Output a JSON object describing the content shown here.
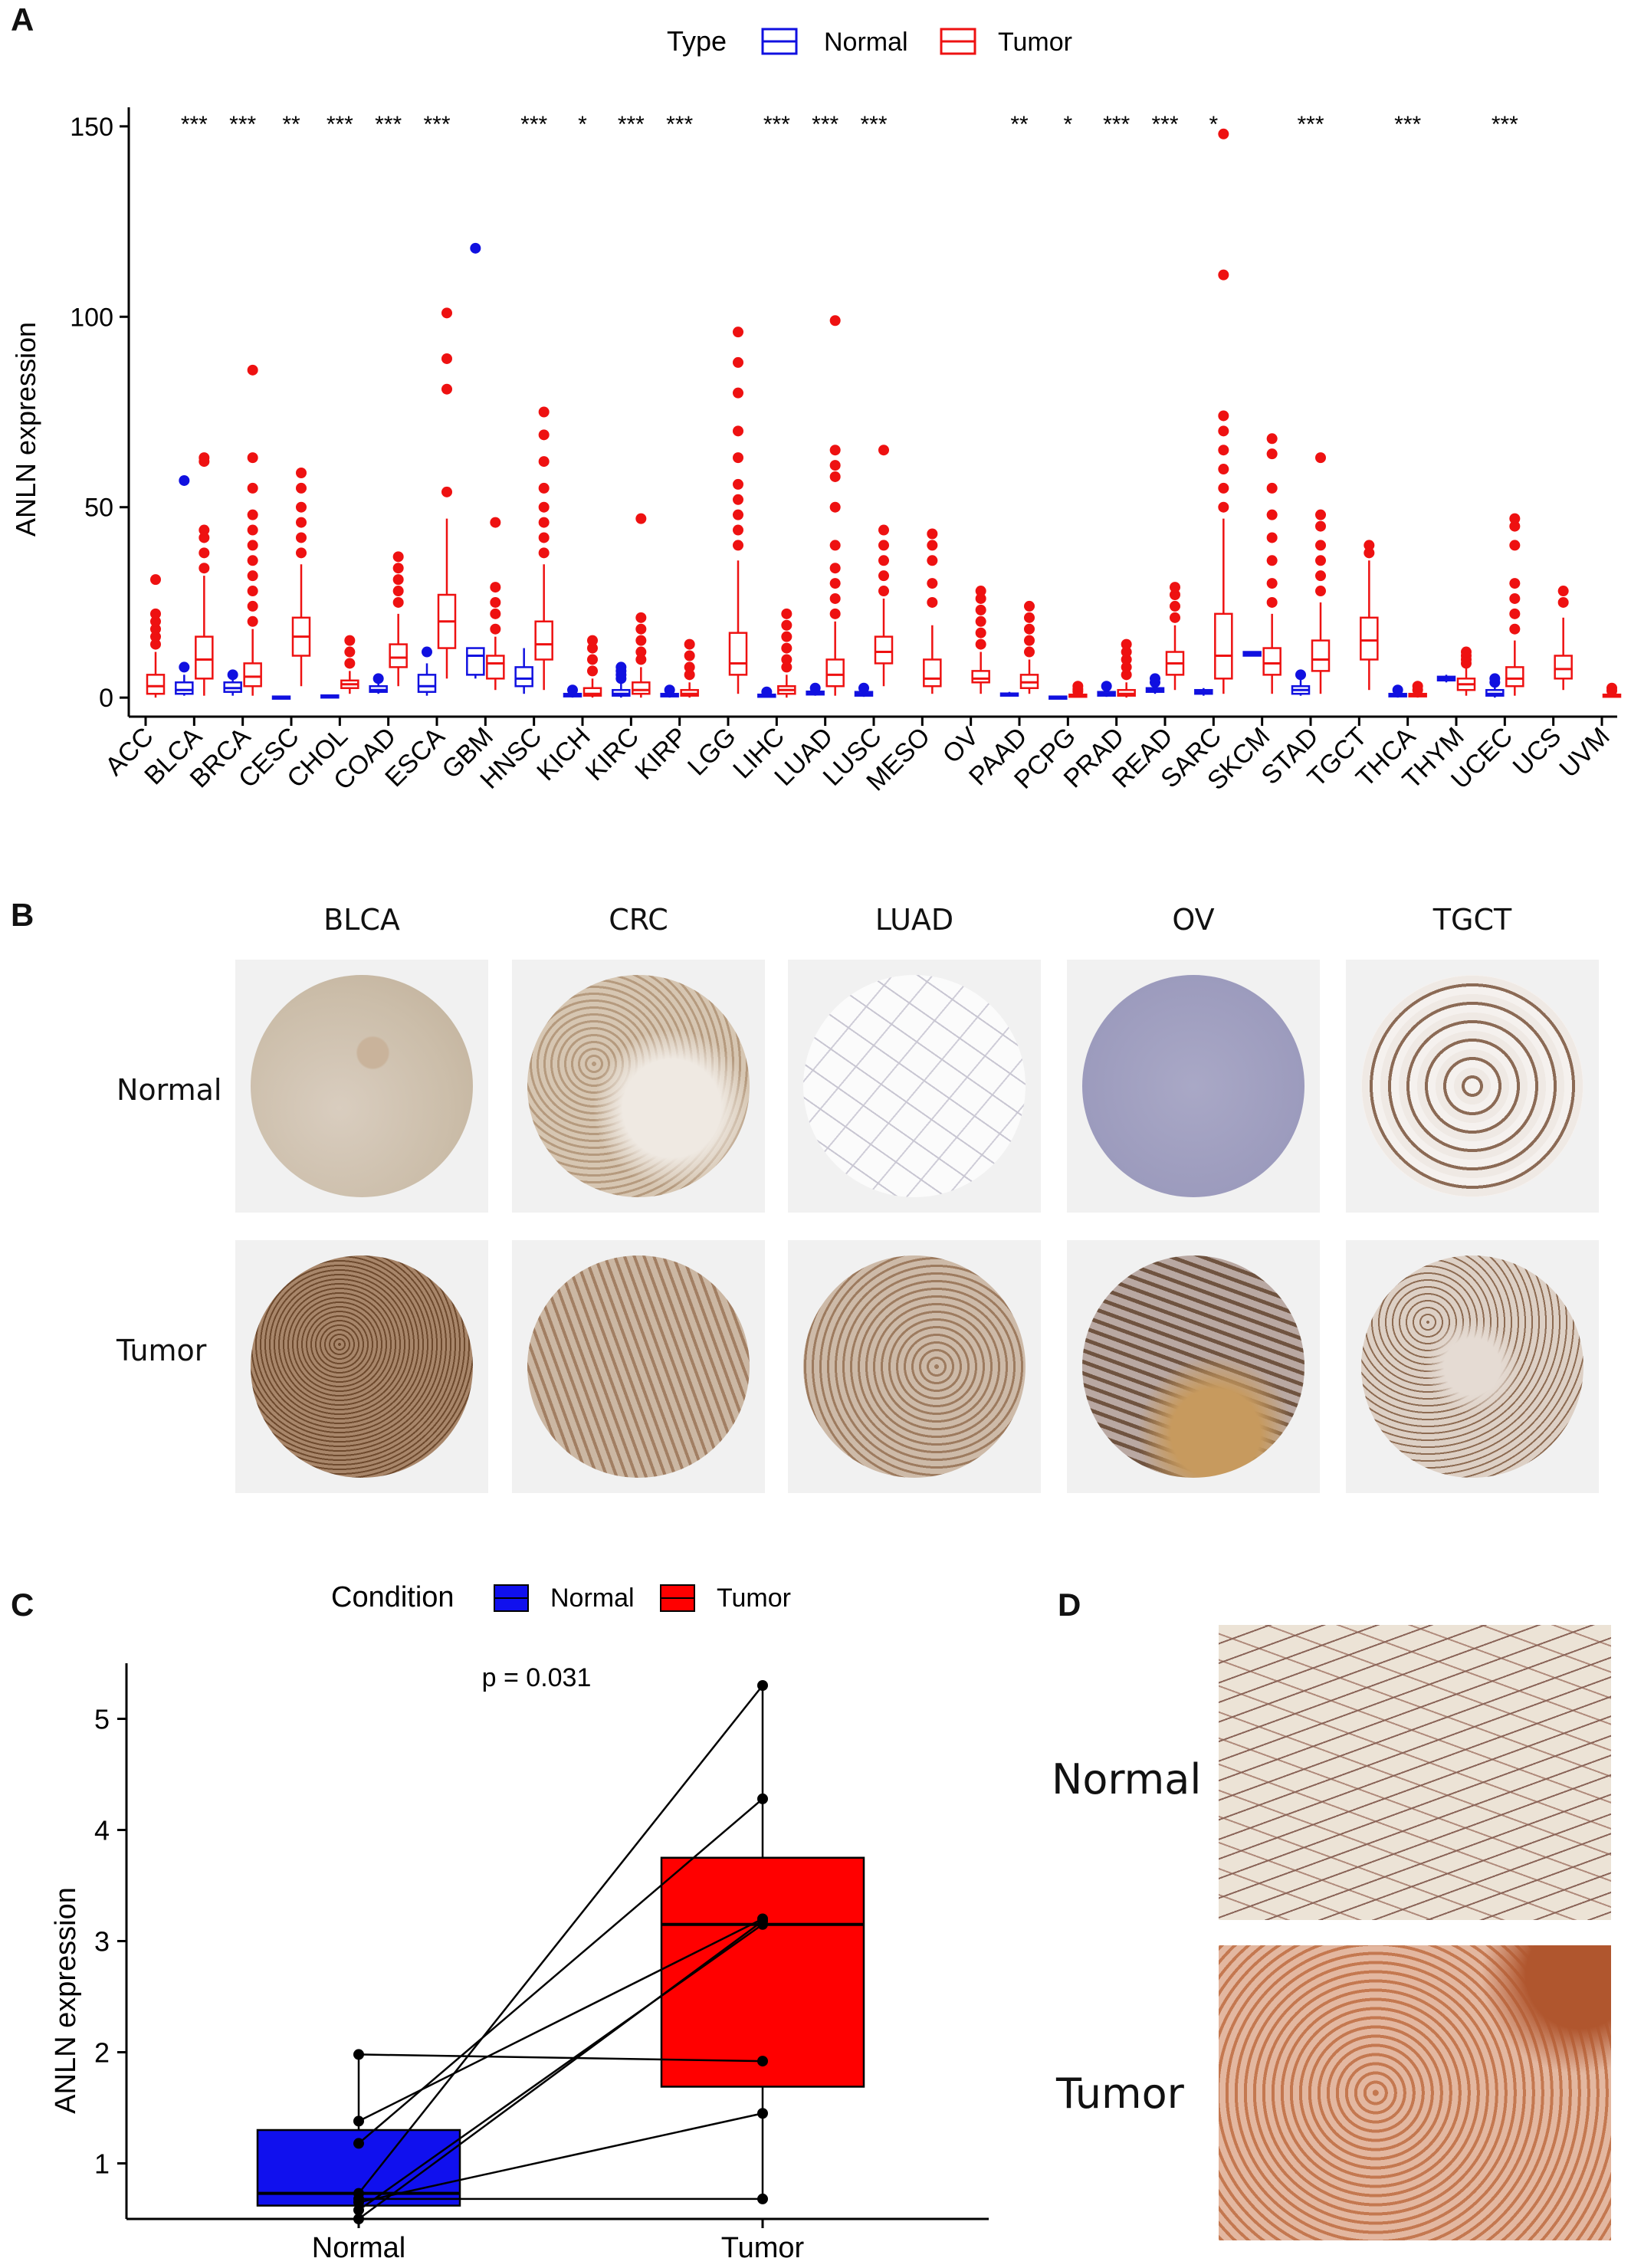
{
  "panels": {
    "a": "A",
    "b": "B",
    "c": "C",
    "d": "D"
  },
  "panel_a": {
    "legend_title": "Type",
    "legend_normal": "Normal",
    "legend_tumor": "Tumor",
    "ylabel": "ANLN expression",
    "colors": {
      "normal": "#1010e0",
      "tumor": "#ee1111"
    }
  },
  "panel_b": {
    "columns": [
      "BLCA",
      "CRC",
      "LUAD",
      "OV",
      "TGCT"
    ],
    "rows": [
      "Normal",
      "Tumor"
    ]
  },
  "panel_c": {
    "legend_title": "Condition",
    "legend_normal": "Normal",
    "legend_tumor": "Tumor",
    "pvalue": "p = 0.031",
    "ylabel": "ANLN expression"
  },
  "panel_d": {
    "rows": [
      "Normal",
      "Tumor"
    ]
  },
  "chart_data": [
    {
      "type": "box",
      "title": "",
      "ylabel": "ANLN expression",
      "ylim": [
        -5,
        155
      ],
      "yticks": [
        0,
        50,
        100,
        150
      ],
      "legend": "top",
      "categories": [
        "ACC",
        "BLCA",
        "BRCA",
        "CESC",
        "CHOL",
        "COAD",
        "ESCA",
        "GBM",
        "HNSC",
        "KICH",
        "KIRC",
        "KIRP",
        "LGG",
        "LIHC",
        "LUAD",
        "LUSC",
        "MESO",
        "OV",
        "PAAD",
        "PCPG",
        "PRAD",
        "READ",
        "SARC",
        "SKCM",
        "STAD",
        "TGCT",
        "THCA",
        "THYM",
        "UCEC",
        "UCS",
        "UVM"
      ],
      "significance": [
        "",
        "***",
        "***",
        "**",
        "***",
        "***",
        "***",
        "",
        "***",
        "*",
        "***",
        "***",
        "",
        "***",
        "***",
        "***",
        "",
        "",
        "**",
        "*",
        "***",
        "***",
        "*",
        "",
        "***",
        "",
        "***",
        "",
        "***",
        "",
        ""
      ],
      "series": [
        {
          "name": "Normal",
          "boxes": [
            null,
            {
              "q1": 1,
              "median": 2,
              "q3": 4,
              "min": 0.5,
              "max": 6,
              "outliers": [
                8,
                57
              ]
            },
            {
              "q1": 1.5,
              "median": 2.5,
              "q3": 4,
              "min": 0.5,
              "max": 5,
              "outliers": [
                6
              ]
            },
            {
              "q1": 0.1,
              "median": 0.2,
              "q3": 0.3,
              "min": 0,
              "max": 0.4,
              "outliers": []
            },
            {
              "q1": 0.2,
              "median": 0.4,
              "q3": 0.6,
              "min": 0.1,
              "max": 0.8,
              "outliers": []
            },
            {
              "q1": 1.5,
              "median": 2,
              "q3": 3,
              "min": 1,
              "max": 4,
              "outliers": [
                5
              ]
            },
            {
              "q1": 1.5,
              "median": 3,
              "q3": 6,
              "min": 0.5,
              "max": 9,
              "outliers": [
                12
              ]
            },
            {
              "q1": 6,
              "median": 11,
              "q3": 13,
              "min": 5,
              "max": 13,
              "outliers": [
                118
              ]
            },
            {
              "q1": 3,
              "median": 5,
              "q3": 8,
              "min": 1,
              "max": 13,
              "outliers": []
            },
            {
              "q1": 0.3,
              "median": 0.6,
              "q3": 1,
              "min": 0,
              "max": 1.5,
              "outliers": [
                2
              ]
            },
            {
              "q1": 0.5,
              "median": 1,
              "q3": 2,
              "min": 0,
              "max": 4,
              "outliers": [
                5,
                6,
                7,
                8
              ]
            },
            {
              "q1": 0.3,
              "median": 0.6,
              "q3": 1,
              "min": 0,
              "max": 1.5,
              "outliers": [
                2
              ]
            },
            null,
            {
              "q1": 0.3,
              "median": 0.5,
              "q3": 0.8,
              "min": 0.1,
              "max": 1.2,
              "outliers": [
                1.5
              ]
            },
            {
              "q1": 0.8,
              "median": 1.2,
              "q3": 1.6,
              "min": 0.5,
              "max": 2,
              "outliers": [
                2.5
              ]
            },
            {
              "q1": 0.5,
              "median": 1,
              "q3": 1.5,
              "min": 0.2,
              "max": 2,
              "outliers": [
                2.5
              ]
            },
            null,
            null,
            {
              "q1": 0.5,
              "median": 0.8,
              "q3": 1.1,
              "min": 0.3,
              "max": 1.5,
              "outliers": []
            },
            {
              "q1": 0.1,
              "median": 0.2,
              "q3": 0.3,
              "min": 0,
              "max": 0.4,
              "outliers": []
            },
            {
              "q1": 0.5,
              "median": 1,
              "q3": 1.5,
              "min": 0.2,
              "max": 2,
              "outliers": [
                3
              ]
            },
            {
              "q1": 1.5,
              "median": 2,
              "q3": 2.5,
              "min": 1,
              "max": 3,
              "outliers": [
                4,
                5
              ]
            },
            {
              "q1": 1,
              "median": 1.5,
              "q3": 2,
              "min": 0.5,
              "max": 2.5,
              "outliers": []
            },
            {
              "q1": 11,
              "median": 11.5,
              "q3": 12,
              "min": 11,
              "max": 12,
              "outliers": []
            },
            {
              "q1": 1,
              "median": 2,
              "q3": 3,
              "min": 0.5,
              "max": 5,
              "outliers": [
                6
              ]
            },
            null,
            {
              "q1": 0.3,
              "median": 0.6,
              "q3": 1,
              "min": 0,
              "max": 1.5,
              "outliers": [
                2
              ]
            },
            {
              "q1": 4.5,
              "median": 5,
              "q3": 5.5,
              "min": 4,
              "max": 6,
              "outliers": []
            },
            {
              "q1": 0.5,
              "median": 1,
              "q3": 2,
              "min": 0,
              "max": 3,
              "outliers": [
                4,
                5
              ]
            },
            null,
            null
          ]
        },
        {
          "name": "Tumor",
          "boxes": [
            {
              "q1": 1,
              "median": 3,
              "q3": 6,
              "min": 0,
              "max": 12,
              "outliers": [
                14,
                16,
                18,
                20,
                22,
                31
              ]
            },
            {
              "q1": 5,
              "median": 10,
              "q3": 16,
              "min": 0.5,
              "max": 32,
              "outliers": [
                34,
                38,
                42,
                44,
                62,
                63
              ]
            },
            {
              "q1": 3,
              "median": 5.5,
              "q3": 9,
              "min": 0.5,
              "max": 18,
              "outliers": [
                20,
                24,
                28,
                32,
                36,
                40,
                44,
                48,
                55,
                63,
                86
              ]
            },
            {
              "q1": 11,
              "median": 16,
              "q3": 21,
              "min": 3,
              "max": 35,
              "outliers": [
                38,
                42,
                46,
                50,
                55,
                59
              ]
            },
            {
              "q1": 2.5,
              "median": 3.5,
              "q3": 4.5,
              "min": 1,
              "max": 7,
              "outliers": [
                9,
                12,
                15
              ]
            },
            {
              "q1": 8,
              "median": 10.5,
              "q3": 14,
              "min": 3,
              "max": 22,
              "outliers": [
                25,
                28,
                31,
                34,
                37
              ]
            },
            {
              "q1": 13,
              "median": 20,
              "q3": 27,
              "min": 5,
              "max": 47,
              "outliers": [
                54,
                81,
                89,
                101
              ]
            },
            {
              "q1": 5,
              "median": 9,
              "q3": 11,
              "min": 2,
              "max": 16,
              "outliers": [
                18,
                22,
                25,
                29,
                46
              ]
            },
            {
              "q1": 10,
              "median": 14,
              "q3": 20,
              "min": 2,
              "max": 35,
              "outliers": [
                38,
                42,
                46,
                50,
                55,
                62,
                69,
                75
              ]
            },
            {
              "q1": 0.5,
              "median": 1,
              "q3": 2.5,
              "min": 0,
              "max": 5,
              "outliers": [
                7,
                10,
                13,
                15
              ]
            },
            {
              "q1": 1,
              "median": 2,
              "q3": 4,
              "min": 0,
              "max": 8,
              "outliers": [
                10,
                12,
                15,
                18,
                21,
                47
              ]
            },
            {
              "q1": 0.5,
              "median": 1,
              "q3": 2,
              "min": 0,
              "max": 4,
              "outliers": [
                6,
                8,
                11,
                14
              ]
            },
            {
              "q1": 6,
              "median": 9,
              "q3": 17,
              "min": 1,
              "max": 36,
              "outliers": [
                40,
                44,
                48,
                52,
                56,
                63,
                70,
                80,
                88,
                96
              ]
            },
            {
              "q1": 1,
              "median": 2,
              "q3": 3,
              "min": 0,
              "max": 6,
              "outliers": [
                8,
                10,
                13,
                16,
                19,
                22
              ]
            },
            {
              "q1": 3,
              "median": 6,
              "q3": 10,
              "min": 0.5,
              "max": 20,
              "outliers": [
                22,
                26,
                30,
                34,
                40,
                50,
                58,
                61,
                65,
                99
              ]
            },
            {
              "q1": 9,
              "median": 12,
              "q3": 16,
              "min": 3,
              "max": 26,
              "outliers": [
                28,
                32,
                36,
                40,
                44,
                65
              ]
            },
            {
              "q1": 3,
              "median": 5,
              "q3": 10,
              "min": 1,
              "max": 19,
              "outliers": [
                25,
                30,
                36,
                40,
                43
              ]
            },
            {
              "q1": 4,
              "median": 5,
              "q3": 7,
              "min": 1,
              "max": 12,
              "outliers": [
                14,
                17,
                20,
                23,
                26,
                28
              ]
            },
            {
              "q1": 2.5,
              "median": 4,
              "q3": 6,
              "min": 1,
              "max": 10,
              "outliers": [
                12,
                15,
                18,
                21,
                24
              ]
            },
            {
              "q1": 0.3,
              "median": 0.5,
              "q3": 0.8,
              "min": 0.1,
              "max": 1.2,
              "outliers": [
                1.6,
                2.2,
                3
              ]
            },
            {
              "q1": 0.5,
              "median": 1,
              "q3": 2,
              "min": 0,
              "max": 4,
              "outliers": [
                6,
                8,
                10,
                12,
                14
              ]
            },
            {
              "q1": 6,
              "median": 9,
              "q3": 12,
              "min": 2,
              "max": 19,
              "outliers": [
                21,
                24,
                27,
                29
              ]
            },
            {
              "q1": 5,
              "median": 11,
              "q3": 22,
              "min": 1,
              "max": 47,
              "outliers": [
                50,
                55,
                60,
                65,
                70,
                74,
                111,
                148
              ]
            },
            {
              "q1": 6,
              "median": 9,
              "q3": 13,
              "min": 1,
              "max": 22,
              "outliers": [
                25,
                30,
                36,
                42,
                48,
                55,
                64,
                68
              ]
            },
            {
              "q1": 7,
              "median": 10,
              "q3": 15,
              "min": 1,
              "max": 25,
              "outliers": [
                28,
                32,
                36,
                40,
                45,
                48,
                63
              ]
            },
            {
              "q1": 10,
              "median": 15,
              "q3": 21,
              "min": 2,
              "max": 36,
              "outliers": [
                38,
                40
              ]
            },
            {
              "q1": 0.3,
              "median": 0.6,
              "q3": 1,
              "min": 0,
              "max": 1.5,
              "outliers": [
                2,
                3
              ]
            },
            {
              "q1": 2,
              "median": 3.5,
              "q3": 5,
              "min": 0.5,
              "max": 8,
              "outliers": [
                9,
                10,
                11,
                12
              ]
            },
            {
              "q1": 3,
              "median": 5,
              "q3": 8,
              "min": 0.5,
              "max": 15,
              "outliers": [
                18,
                22,
                26,
                30,
                40,
                45,
                47
              ]
            },
            {
              "q1": 5,
              "median": 7.5,
              "q3": 11,
              "min": 2,
              "max": 21,
              "outliers": [
                25,
                28
              ]
            },
            {
              "q1": 0.3,
              "median": 0.5,
              "q3": 0.8,
              "min": 0.1,
              "max": 1.2,
              "outliers": [
                1.8,
                2.5
              ]
            }
          ]
        }
      ]
    },
    {
      "type": "box",
      "title": "",
      "ylabel": "ANLN expression",
      "ylim": [
        0.5,
        5.5
      ],
      "yticks": [
        1,
        2,
        3,
        4,
        5
      ],
      "categories": [
        "Normal",
        "Tumor"
      ],
      "legend": "top",
      "series": [
        {
          "name": "Normal",
          "box": {
            "q1": 0.62,
            "median": 0.73,
            "q3": 1.3,
            "min": 0.5,
            "max": 1.98
          }
        },
        {
          "name": "Tumor",
          "box": {
            "q1": 1.69,
            "median": 3.15,
            "q3": 3.75,
            "min": 0.68,
            "max": 5.3
          }
        }
      ],
      "pairs": [
        [
          1.98,
          1.92
        ],
        [
          1.38,
          3.2
        ],
        [
          1.18,
          4.28
        ],
        [
          0.73,
          5.3
        ],
        [
          0.65,
          1.45
        ],
        [
          0.58,
          3.15
        ],
        [
          0.5,
          3.18
        ],
        [
          0.68,
          0.68
        ]
      ],
      "annotations": [
        "p = 0.031"
      ]
    }
  ]
}
